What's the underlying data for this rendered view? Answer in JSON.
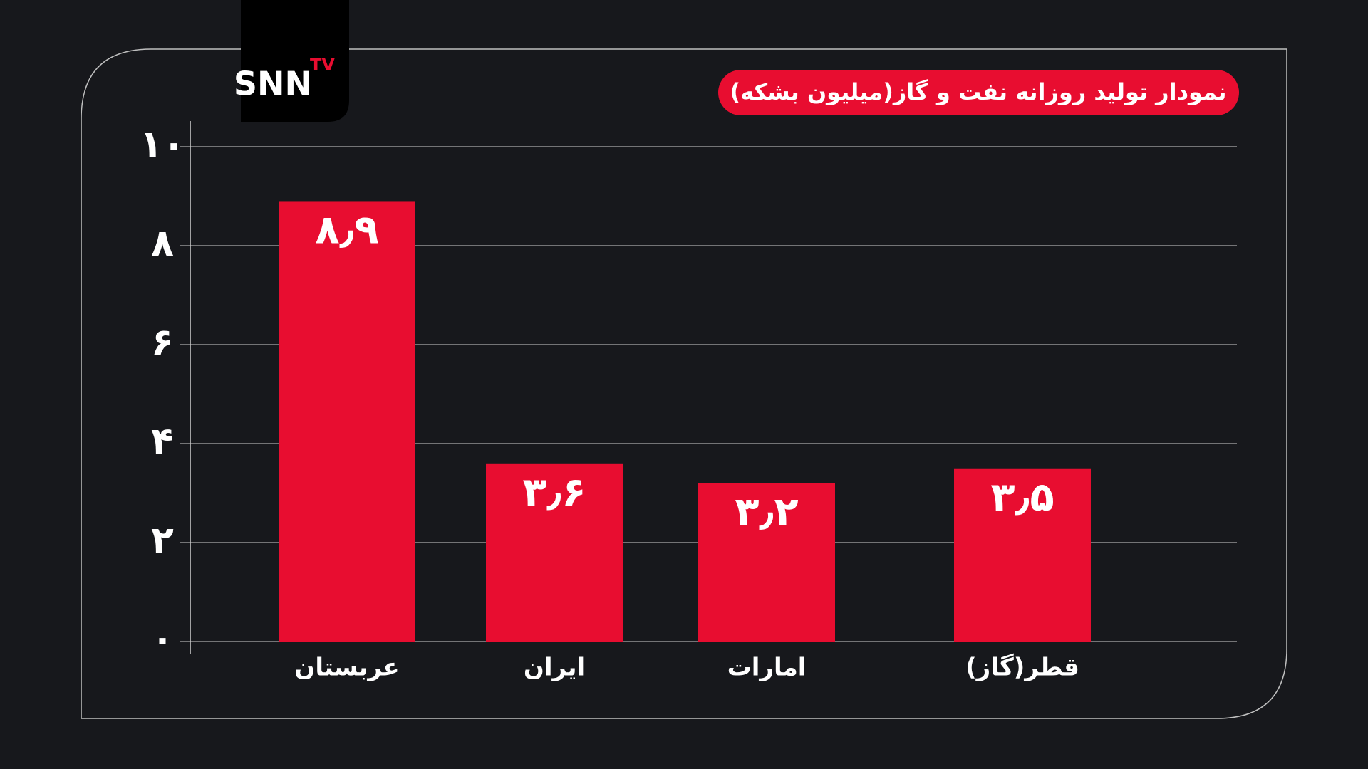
{
  "logo": {
    "name": "SNN",
    "badge": "TV"
  },
  "chart_data": {
    "type": "bar",
    "title": "نمودار تولید روزانه نفت و گاز(میلیون بشکه)",
    "categories": [
      "عربستان",
      "ایران",
      "امارات",
      "قطر(گاز)"
    ],
    "values": [
      8.9,
      3.6,
      3.2,
      3.5
    ],
    "value_labels": [
      "۸٫۹",
      "۳٫۶",
      "۳٫۲",
      "۳٫۵"
    ],
    "color": "#e80d30",
    "ylim": [
      0,
      10
    ],
    "yticks": [
      {
        "value": 0,
        "label": "۰"
      },
      {
        "value": 2,
        "label": "۲"
      },
      {
        "value": 4,
        "label": "۴"
      },
      {
        "value": 6,
        "label": "۶"
      },
      {
        "value": 8,
        "label": "۸"
      },
      {
        "value": 10,
        "label": "۱۰"
      }
    ],
    "grid": true
  }
}
